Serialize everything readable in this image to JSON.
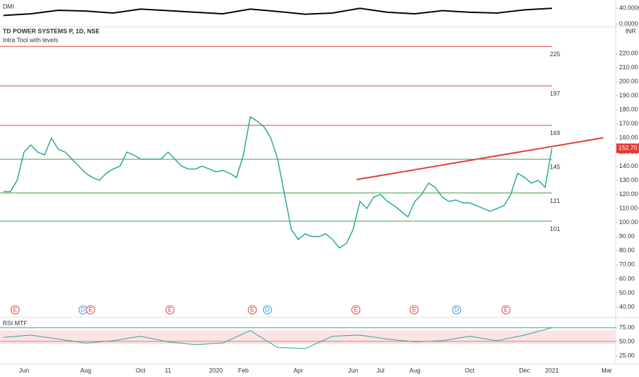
{
  "chart_data": {
    "type": "line",
    "title": "TD POWER SYSTEMS P, 1D, NSE",
    "subtitle": "Intra Tool with levels",
    "currency": "INR",
    "last_price_label": "152.70",
    "categories": [
      null,
      null,
      null,
      "Jun",
      null,
      null,
      null,
      null,
      null,
      null,
      null,
      null,
      "Aug",
      null,
      null,
      null,
      null,
      null,
      null,
      null,
      "Oct",
      null,
      null,
      null,
      "11",
      null,
      null,
      null,
      null,
      null,
      null,
      "2020",
      null,
      null,
      null,
      "Feb",
      null,
      null,
      null,
      null,
      null,
      null,
      null,
      "Apr",
      null,
      null,
      null,
      null,
      null,
      null,
      null,
      "Jun",
      null,
      null,
      null,
      "Jul",
      null,
      null,
      null,
      null,
      "Aug",
      null,
      null,
      null,
      null,
      null,
      null,
      null,
      "Oct",
      null,
      null,
      null,
      null,
      null,
      null,
      null,
      "Dec",
      null,
      null,
      null,
      "2021",
      null,
      null,
      null,
      null,
      null,
      null,
      null,
      "Mar"
    ],
    "values": [
      122,
      122,
      130,
      150,
      155,
      150,
      148,
      160,
      152,
      150,
      145,
      140,
      135,
      132,
      130,
      135,
      138,
      140,
      150,
      148,
      145,
      145,
      145,
      145,
      150,
      145,
      140,
      138,
      138,
      140,
      138,
      136,
      137,
      135,
      132,
      148,
      175,
      172,
      168,
      160,
      145,
      120,
      95,
      88,
      92,
      90,
      90,
      92,
      88,
      82,
      85,
      95,
      115,
      110,
      118,
      120,
      115,
      112,
      108,
      104,
      115,
      120,
      128,
      125,
      118,
      115,
      116,
      114,
      114,
      112,
      110,
      108,
      110,
      112,
      120,
      135,
      132,
      128,
      130,
      125,
      152.7,
      null,
      null,
      null,
      null,
      null,
      null,
      null,
      null
    ],
    "color": "#26a69a",
    "ylim": [
      33.2,
      238.5
    ],
    "yticks": [
      {
        "value": 40,
        "label": "40.00"
      },
      {
        "value": 50,
        "label": "50.00"
      },
      {
        "value": 60,
        "label": "60.00"
      },
      {
        "value": 70,
        "label": "70.00"
      },
      {
        "value": 80,
        "label": "80.00"
      },
      {
        "value": 90,
        "label": "90.00"
      },
      {
        "value": 100,
        "label": "100.00"
      },
      {
        "value": 110,
        "label": "110.00"
      },
      {
        "value": 120,
        "label": "120.00"
      },
      {
        "value": 130,
        "label": "130.00"
      },
      {
        "value": 140,
        "label": "140.00"
      },
      {
        "value": 150,
        "label": "150.00"
      },
      {
        "value": 160,
        "label": "160.00"
      },
      {
        "value": 170,
        "label": "170.00"
      },
      {
        "value": 180,
        "label": "180.00"
      },
      {
        "value": 190,
        "label": "190.00"
      },
      {
        "value": 200,
        "label": "200.00"
      },
      {
        "value": 210,
        "label": "210.00"
      },
      {
        "value": 220,
        "label": "220.00"
      }
    ],
    "levels": [
      {
        "value": 225,
        "color": "#e53935"
      },
      {
        "value": 197,
        "color": "#e53935"
      },
      {
        "value": 169,
        "color": "#e53935"
      },
      {
        "value": 145,
        "color": "#43a047"
      },
      {
        "value": 121,
        "color": "#43a047"
      },
      {
        "value": 101,
        "color": "#43a047"
      }
    ],
    "events": [
      "E",
      "D",
      "E",
      "E",
      "E",
      "D",
      "E",
      "E",
      "D",
      "E"
    ],
    "dmi": {
      "label": "DMI",
      "color": "#000000",
      "ylim": [
        -5,
        61
      ],
      "yticks": [
        {
          "value": 40,
          "label": "40.0000"
        },
        {
          "value": 0,
          "label": "0.0000"
        }
      ],
      "values": [
        22,
        26,
        35,
        33,
        28,
        38,
        34,
        30,
        26,
        38,
        32,
        25,
        28,
        40,
        30,
        26,
        34,
        30,
        28,
        36,
        40
      ]
    },
    "rsi": {
      "label": "RSI MTF",
      "color": "#26a69a",
      "ylim": [
        12,
        91
      ],
      "yticks": [
        {
          "value": 75,
          "label": "75.00"
        },
        {
          "value": 50,
          "label": "50.00"
        },
        {
          "value": 25,
          "label": "25.00"
        }
      ],
      "values": [
        58,
        62,
        55,
        48,
        52,
        60,
        50,
        45,
        48,
        70,
        40,
        38,
        60,
        62,
        55,
        50,
        52,
        60,
        52,
        62,
        75
      ]
    }
  }
}
